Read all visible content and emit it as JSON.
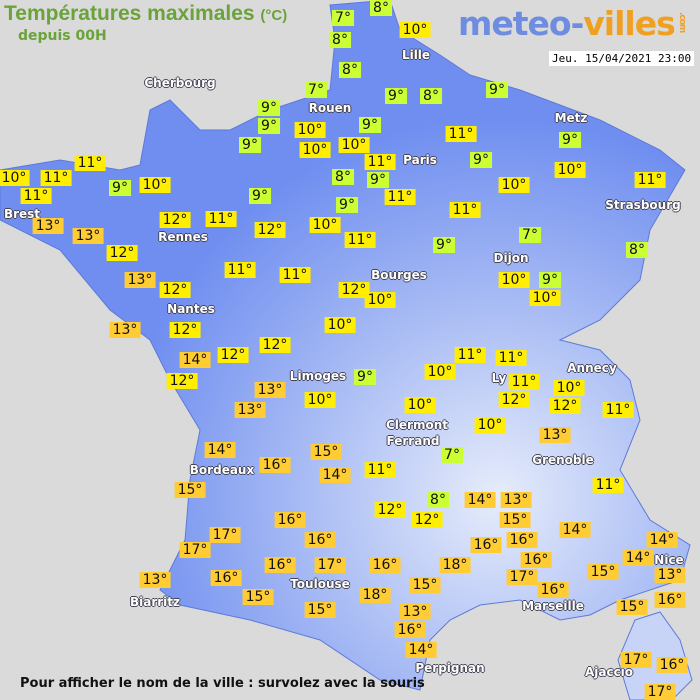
{
  "header": {
    "title": "Températures maximales",
    "unit": "(°C)",
    "subtitle": "depuis 00H",
    "logo_text": "meteo-villes",
    "logo_main": "meteo-",
    "logo_accent": "villes",
    "logo_tld": ".com",
    "date": "Jeu. 15/04/2021 23:00"
  },
  "footer": {
    "hint": "Pour afficher le nom de la ville : survolez avec la souris"
  },
  "legend_colors": {
    "cool": "#ccff33",
    "mild": "#ffee00",
    "warm": "#ffcc33",
    "land": "#6f8ef0",
    "background": "#dadada"
  },
  "cities": [
    "Cherbourg",
    "Lille",
    "Rouen",
    "Paris",
    "Metz",
    "Strasbourg",
    "Brest",
    "Rennes",
    "Nantes",
    "Dijon",
    "Bourges",
    "Limoges",
    "Clermont",
    "Ferrand",
    "Ly",
    "Annecy",
    "Grenoble",
    "Bordeaux",
    "Toulouse",
    "Biarritz",
    "Perpignan",
    "Marseille",
    "Nice",
    "Ajaccio"
  ],
  "temperatures": [
    "7°",
    "8°",
    "10°",
    "8°",
    "8°",
    "7°",
    "9°",
    "8°",
    "9°",
    "9°",
    "9°",
    "10°",
    "9°",
    "10°",
    "9°",
    "10°",
    "11°",
    "9°",
    "11°",
    "9°",
    "10°",
    "10°",
    "11°",
    "11°",
    "11°",
    "9°",
    "10°",
    "8°",
    "9°",
    "11°",
    "10°",
    "11°",
    "9°",
    "13°",
    "12°",
    "11°",
    "12°",
    "10°",
    "9°",
    "11°",
    "13°",
    "12°",
    "11°",
    "9°",
    "7°",
    "8°",
    "13°",
    "12°",
    "11°",
    "11°",
    "12°",
    "10°",
    "10°",
    "9°",
    "10°",
    "13°",
    "12°",
    "10°",
    "14°",
    "12°",
    "12°",
    "11°",
    "11°",
    "12°",
    "13°",
    "9°",
    "11°",
    "10°",
    "10°",
    "12°",
    "12°",
    "11°",
    "13°",
    "10°",
    "10°",
    "10°",
    "13°",
    "14°",
    "16°",
    "15°",
    "7°",
    "11°",
    "14°",
    "15°",
    "8°",
    "14°",
    "13°",
    "11°",
    "12°",
    "12°",
    "16°",
    "15°",
    "14°",
    "14°",
    "14°",
    "17°",
    "16°",
    "16°",
    "16°",
    "17°",
    "16°",
    "15°",
    "13°",
    "16°",
    "17°",
    "16°",
    "18°",
    "17°",
    "16°",
    "13°",
    "16°",
    "15°",
    "15°",
    "18°",
    "16°",
    "15°",
    "15°",
    "13°",
    "16°",
    "14°",
    "17°",
    "16°",
    "17°"
  ]
}
